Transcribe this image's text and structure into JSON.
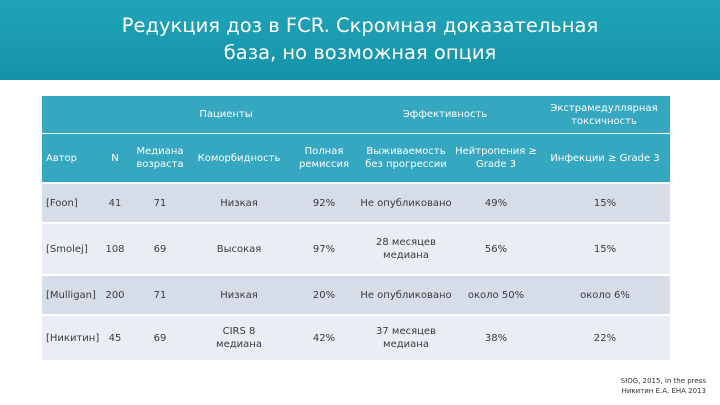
{
  "slide": {
    "title_line1": "Редукция доз в FCR. Скромная доказательная",
    "title_line2": "база, но возможная опция"
  },
  "table": {
    "group_headers": {
      "patients": "Пациенты",
      "efficacy": "Эффективность",
      "toxicity": "Экстрамедуллярная токсичность"
    },
    "column_headers": {
      "author": "Автор",
      "n": "N",
      "median_age": "Медиана возраста",
      "comorbidity": "Коморбидность",
      "complete_remission": "Полная ремиссия",
      "pfs": "Выживаемость без прогрессии",
      "neutropenia": "Нейтропения ≥ Grade 3",
      "infections": "Инфекции ≥ Grade 3"
    },
    "rows": [
      {
        "author": "[Foon]",
        "n": "41",
        "median_age": "71",
        "comorbidity": "Низкая",
        "complete_remission": "92%",
        "pfs": "Не опубликовано",
        "neutropenia": "49%",
        "infections": "15%"
      },
      {
        "author": "[Smolej]",
        "n": "108",
        "median_age": "69",
        "comorbidity": "Высокая",
        "complete_remission": "97%",
        "pfs": "28 месяцев медиана",
        "neutropenia": "56%",
        "infections": "15%"
      },
      {
        "author": "[Mulligan]",
        "n": "200",
        "median_age": "71",
        "comorbidity": "Низкая",
        "complete_remission": "20%",
        "pfs": "Не опубликовано",
        "neutropenia": "около 50%",
        "infections": "около 6%"
      },
      {
        "author": "[Никитин]",
        "n": "45",
        "median_age": "69",
        "comorbidity": "CIRS 8 медиана",
        "complete_remission": "42%",
        "pfs": "37 месяцев медиана",
        "neutropenia": "38%",
        "infections": "22%"
      }
    ]
  },
  "footer": {
    "line1": "SIOG, 2015, in the press",
    "line2": "Никитин Е.А. EHA 2013"
  }
}
